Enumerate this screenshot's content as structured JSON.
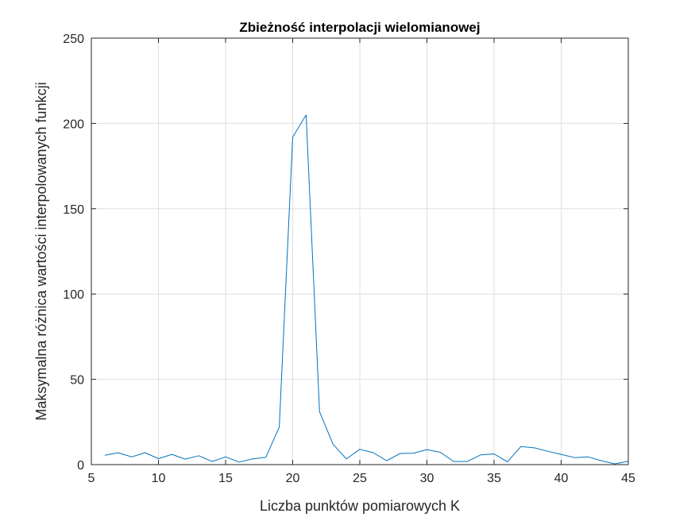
{
  "chart_data": {
    "type": "line",
    "title": "Zbieżność interpolacji wielomianowej",
    "xlabel": "Liczba punktów pomiarowych K",
    "ylabel": "Maksymalna różnica wartości interpolowanych funkcji",
    "xlim": [
      5,
      45
    ],
    "ylim": [
      0,
      250
    ],
    "grid": true,
    "x_ticks": [
      "5",
      "10",
      "15",
      "20",
      "25",
      "30",
      "35",
      "40",
      "45"
    ],
    "y_ticks": [
      "0",
      "50",
      "100",
      "150",
      "200",
      "250"
    ],
    "series": [
      {
        "color": "#0072BD",
        "x": [
          6,
          7,
          8,
          9,
          10,
          11,
          12,
          13,
          14,
          15,
          16,
          17,
          18,
          19,
          20,
          21,
          22,
          23,
          24,
          25,
          26,
          27,
          28,
          29,
          30,
          31,
          32,
          33,
          34,
          35,
          36,
          37,
          38,
          39,
          40,
          41,
          42,
          43,
          44,
          45
        ],
        "y": [
          5.5,
          7,
          4.5,
          7,
          3.5,
          6,
          3.2,
          5.2,
          1.8,
          4.5,
          1.5,
          3.3,
          4.3,
          22,
          192,
          205,
          31,
          12,
          3.3,
          9,
          7,
          2.3,
          6.5,
          6.7,
          8.8,
          7.2,
          1.8,
          1.8,
          5.7,
          6.3,
          1.6,
          10.6,
          9.8,
          7.8,
          6,
          4.1,
          4.5,
          2.3,
          0.4,
          2
        ]
      }
    ]
  }
}
